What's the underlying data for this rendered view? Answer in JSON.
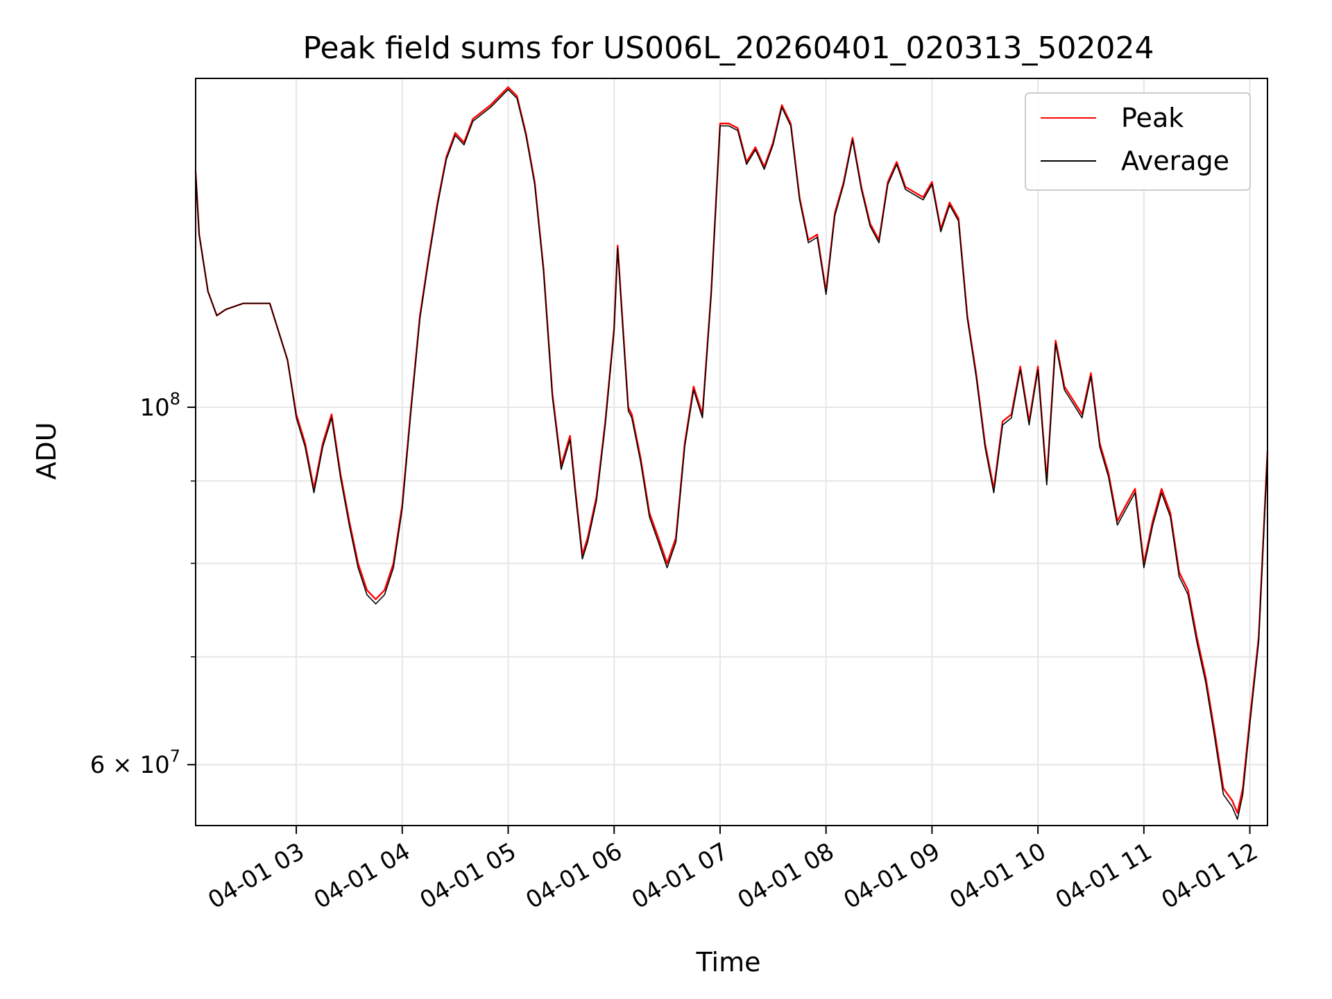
{
  "chart_data": {
    "type": "line",
    "title": "Peak field sums for US006L_20260401_020313_502024",
    "xlabel": "Time",
    "ylabel": "ADU",
    "x_scale": "time",
    "y_scale": "log",
    "xlim": [
      "2026-04-01 02:03",
      "2026-04-01 12:10"
    ],
    "ylim": [
      55000000,
      160000000
    ],
    "xticks": [
      {
        "value": "2026-04-01 03:00",
        "label": "04-01 03"
      },
      {
        "value": "2026-04-01 04:00",
        "label": "04-01 04"
      },
      {
        "value": "2026-04-01 05:00",
        "label": "04-01 05"
      },
      {
        "value": "2026-04-01 06:00",
        "label": "04-01 06"
      },
      {
        "value": "2026-04-01 07:00",
        "label": "04-01 07"
      },
      {
        "value": "2026-04-01 08:00",
        "label": "04-01 08"
      },
      {
        "value": "2026-04-01 09:00",
        "label": "04-01 09"
      },
      {
        "value": "2026-04-01 10:00",
        "label": "04-01 10"
      },
      {
        "value": "2026-04-01 11:00",
        "label": "04-01 11"
      },
      {
        "value": "2026-04-01 12:00",
        "label": "04-01 12"
      }
    ],
    "yticks_major": [
      {
        "value": 60000000,
        "base": "6",
        "times": "×",
        "exp_base": "10",
        "exp": "7"
      },
      {
        "value": 100000000,
        "base": "10",
        "times": "",
        "exp_base": "",
        "exp": "8"
      }
    ],
    "yticks_minor": [
      70000000,
      80000000,
      90000000
    ],
    "grid": true,
    "legend_position": "top-right",
    "series": [
      {
        "name": "Peak",
        "color": "#ff0000",
        "x": [
          "2026-04-01 02:03",
          "2026-04-01 02:05",
          "2026-04-01 02:10",
          "2026-04-01 02:15",
          "2026-04-01 02:20",
          "2026-04-01 02:30",
          "2026-04-01 02:40",
          "2026-04-01 02:45",
          "2026-04-01 02:55",
          "2026-04-01 03:00",
          "2026-04-01 03:05",
          "2026-04-01 03:10",
          "2026-04-01 03:15",
          "2026-04-01 03:20",
          "2026-04-01 03:25",
          "2026-04-01 03:30",
          "2026-04-01 03:35",
          "2026-04-01 03:40",
          "2026-04-01 03:45",
          "2026-04-01 03:50",
          "2026-04-01 03:55",
          "2026-04-01 04:00",
          "2026-04-01 04:05",
          "2026-04-01 04:10",
          "2026-04-01 04:15",
          "2026-04-01 04:20",
          "2026-04-01 04:25",
          "2026-04-01 04:30",
          "2026-04-01 04:35",
          "2026-04-01 04:40",
          "2026-04-01 04:50",
          "2026-04-01 05:00",
          "2026-04-01 05:05",
          "2026-04-01 05:10",
          "2026-04-01 05:15",
          "2026-04-01 05:20",
          "2026-04-01 05:25",
          "2026-04-01 05:30",
          "2026-04-01 05:35",
          "2026-04-01 05:38",
          "2026-04-01 05:42",
          "2026-04-01 05:45",
          "2026-04-01 05:50",
          "2026-04-01 05:55",
          "2026-04-01 06:00",
          "2026-04-01 06:02",
          "2026-04-01 06:05",
          "2026-04-01 06:08",
          "2026-04-01 06:10",
          "2026-04-01 06:15",
          "2026-04-01 06:20",
          "2026-04-01 06:25",
          "2026-04-01 06:30",
          "2026-04-01 06:35",
          "2026-04-01 06:40",
          "2026-04-01 06:45",
          "2026-04-01 06:50",
          "2026-04-01 06:55",
          "2026-04-01 07:00",
          "2026-04-01 07:05",
          "2026-04-01 07:10",
          "2026-04-01 07:15",
          "2026-04-01 07:20",
          "2026-04-01 07:25",
          "2026-04-01 07:30",
          "2026-04-01 07:35",
          "2026-04-01 07:40",
          "2026-04-01 07:45",
          "2026-04-01 07:50",
          "2026-04-01 07:55",
          "2026-04-01 08:00",
          "2026-04-01 08:05",
          "2026-04-01 08:10",
          "2026-04-01 08:15",
          "2026-04-01 08:20",
          "2026-04-01 08:25",
          "2026-04-01 08:30",
          "2026-04-01 08:35",
          "2026-04-01 08:40",
          "2026-04-01 08:45",
          "2026-04-01 08:50",
          "2026-04-01 08:55",
          "2026-04-01 09:00",
          "2026-04-01 09:05",
          "2026-04-01 09:10",
          "2026-04-01 09:15",
          "2026-04-01 09:20",
          "2026-04-01 09:25",
          "2026-04-01 09:30",
          "2026-04-01 09:35",
          "2026-04-01 09:40",
          "2026-04-01 09:45",
          "2026-04-01 09:50",
          "2026-04-01 09:55",
          "2026-04-01 10:00",
          "2026-04-01 10:05",
          "2026-04-01 10:10",
          "2026-04-01 10:15",
          "2026-04-01 10:20",
          "2026-04-01 10:25",
          "2026-04-01 10:30",
          "2026-04-01 10:35",
          "2026-04-01 10:40",
          "2026-04-01 10:45",
          "2026-04-01 10:50",
          "2026-04-01 10:55",
          "2026-04-01 11:00",
          "2026-04-01 11:05",
          "2026-04-01 11:10",
          "2026-04-01 11:15",
          "2026-04-01 11:20",
          "2026-04-01 11:25",
          "2026-04-01 11:30",
          "2026-04-01 11:35",
          "2026-04-01 11:40",
          "2026-04-01 11:45",
          "2026-04-01 11:50",
          "2026-04-01 11:53",
          "2026-04-01 11:56",
          "2026-04-01 12:00",
          "2026-04-01 12:05",
          "2026-04-01 12:10"
        ],
        "y": [
          140000000,
          128000000,
          118000000,
          114000000,
          115000000,
          116000000,
          116000000,
          116000000,
          107000000,
          99000000,
          95000000,
          89000000,
          95000000,
          99000000,
          91000000,
          85000000,
          80000000,
          77000000,
          76000000,
          77000000,
          80000000,
          87000000,
          100000000,
          114000000,
          124000000,
          134000000,
          143000000,
          148000000,
          146000000,
          151000000,
          154000000,
          158000000,
          156000000,
          148000000,
          138000000,
          122000000,
          102000000,
          92000000,
          96000000,
          89000000,
          81000000,
          83000000,
          88000000,
          98000000,
          112000000,
          126000000,
          112000000,
          100000000,
          99000000,
          93000000,
          86000000,
          83000000,
          80000000,
          83000000,
          95000000,
          103000000,
          99000000,
          118000000,
          150000000,
          150000000,
          149000000,
          142000000,
          145000000,
          141000000,
          146000000,
          154000000,
          150000000,
          135000000,
          127000000,
          128000000,
          118000000,
          132000000,
          138000000,
          147000000,
          137000000,
          130000000,
          127000000,
          138000000,
          142000000,
          137000000,
          136000000,
          135000000,
          138000000,
          129000000,
          134000000,
          131000000,
          114000000,
          105000000,
          95000000,
          89000000,
          98000000,
          99000000,
          106000000,
          98000000,
          106000000,
          90000000,
          110000000,
          103000000,
          101000000,
          99000000,
          105000000,
          95000000,
          91000000,
          85000000,
          87000000,
          89000000,
          80000000,
          85000000,
          89000000,
          86000000,
          79000000,
          77000000,
          72000000,
          68000000,
          63000000,
          58000000,
          57000000,
          56000000,
          58000000,
          64000000,
          72000000,
          94000000
        ]
      },
      {
        "name": "Average",
        "color": "#000000",
        "x": [
          "2026-04-01 02:03",
          "2026-04-01 02:05",
          "2026-04-01 02:10",
          "2026-04-01 02:15",
          "2026-04-01 02:20",
          "2026-04-01 02:30",
          "2026-04-01 02:40",
          "2026-04-01 02:45",
          "2026-04-01 02:55",
          "2026-04-01 03:00",
          "2026-04-01 03:05",
          "2026-04-01 03:10",
          "2026-04-01 03:15",
          "2026-04-01 03:20",
          "2026-04-01 03:25",
          "2026-04-01 03:30",
          "2026-04-01 03:35",
          "2026-04-01 03:40",
          "2026-04-01 03:45",
          "2026-04-01 03:50",
          "2026-04-01 03:55",
          "2026-04-01 04:00",
          "2026-04-01 04:05",
          "2026-04-01 04:10",
          "2026-04-01 04:15",
          "2026-04-01 04:20",
          "2026-04-01 04:25",
          "2026-04-01 04:30",
          "2026-04-01 04:35",
          "2026-04-01 04:40",
          "2026-04-01 04:50",
          "2026-04-01 05:00",
          "2026-04-01 05:05",
          "2026-04-01 05:10",
          "2026-04-01 05:15",
          "2026-04-01 05:20",
          "2026-04-01 05:25",
          "2026-04-01 05:30",
          "2026-04-01 05:35",
          "2026-04-01 05:38",
          "2026-04-01 05:42",
          "2026-04-01 05:45",
          "2026-04-01 05:50",
          "2026-04-01 05:55",
          "2026-04-01 06:00",
          "2026-04-01 06:02",
          "2026-04-01 06:05",
          "2026-04-01 06:08",
          "2026-04-01 06:10",
          "2026-04-01 06:15",
          "2026-04-01 06:20",
          "2026-04-01 06:25",
          "2026-04-01 06:30",
          "2026-04-01 06:35",
          "2026-04-01 06:40",
          "2026-04-01 06:45",
          "2026-04-01 06:50",
          "2026-04-01 06:55",
          "2026-04-01 07:00",
          "2026-04-01 07:05",
          "2026-04-01 07:10",
          "2026-04-01 07:15",
          "2026-04-01 07:20",
          "2026-04-01 07:25",
          "2026-04-01 07:30",
          "2026-04-01 07:35",
          "2026-04-01 07:40",
          "2026-04-01 07:45",
          "2026-04-01 07:50",
          "2026-04-01 07:55",
          "2026-04-01 08:00",
          "2026-04-01 08:05",
          "2026-04-01 08:10",
          "2026-04-01 08:15",
          "2026-04-01 08:20",
          "2026-04-01 08:25",
          "2026-04-01 08:30",
          "2026-04-01 08:35",
          "2026-04-01 08:40",
          "2026-04-01 08:45",
          "2026-04-01 08:50",
          "2026-04-01 08:55",
          "2026-04-01 09:00",
          "2026-04-01 09:05",
          "2026-04-01 09:10",
          "2026-04-01 09:15",
          "2026-04-01 09:20",
          "2026-04-01 09:25",
          "2026-04-01 09:30",
          "2026-04-01 09:35",
          "2026-04-01 09:40",
          "2026-04-01 09:45",
          "2026-04-01 09:50",
          "2026-04-01 09:55",
          "2026-04-01 10:00",
          "2026-04-01 10:05",
          "2026-04-01 10:10",
          "2026-04-01 10:15",
          "2026-04-01 10:20",
          "2026-04-01 10:25",
          "2026-04-01 10:30",
          "2026-04-01 10:35",
          "2026-04-01 10:40",
          "2026-04-01 10:45",
          "2026-04-01 10:50",
          "2026-04-01 10:55",
          "2026-04-01 11:00",
          "2026-04-01 11:05",
          "2026-04-01 11:10",
          "2026-04-01 11:15",
          "2026-04-01 11:20",
          "2026-04-01 11:25",
          "2026-04-01 11:30",
          "2026-04-01 11:35",
          "2026-04-01 11:40",
          "2026-04-01 11:45",
          "2026-04-01 11:50",
          "2026-04-01 11:53",
          "2026-04-01 11:56",
          "2026-04-01 12:00",
          "2026-04-01 12:05",
          "2026-04-01 12:10"
        ],
        "y": [
          140000000,
          128000000,
          118000000,
          114000000,
          115000000,
          116000000,
          116000000,
          116000000,
          107000000,
          98500000,
          94500000,
          88500000,
          94500000,
          98500000,
          90500000,
          84500000,
          79500000,
          76500000,
          75500000,
          76500000,
          79500000,
          86500000,
          99500000,
          113500000,
          123500000,
          133500000,
          142500000,
          147500000,
          145500000,
          150500000,
          153500000,
          157500000,
          155500000,
          147500000,
          137500000,
          121500000,
          101500000,
          91500000,
          95500000,
          88500000,
          80500000,
          82500000,
          87500000,
          97500000,
          111500000,
          125500000,
          111500000,
          99500000,
          98500000,
          92500000,
          85500000,
          82500000,
          79500000,
          82500000,
          94500000,
          102500000,
          98500000,
          117500000,
          149500000,
          149500000,
          148500000,
          141500000,
          144500000,
          140500000,
          145500000,
          153500000,
          149500000,
          134500000,
          126500000,
          127500000,
          117500000,
          131500000,
          137500000,
          146500000,
          136500000,
          129500000,
          126500000,
          137500000,
          141500000,
          136500000,
          135500000,
          134500000,
          137500000,
          128500000,
          133500000,
          130500000,
          113500000,
          104500000,
          94500000,
          88500000,
          97500000,
          98500000,
          105500000,
          97500000,
          105500000,
          89500000,
          109500000,
          102500000,
          100500000,
          98500000,
          104500000,
          94500000,
          90500000,
          84500000,
          86500000,
          88500000,
          79500000,
          84500000,
          88500000,
          85500000,
          78500000,
          76500000,
          71500000,
          67500000,
          62500000,
          57500000,
          56500000,
          55500000,
          57500000,
          63500000,
          71500000,
          93500000
        ]
      }
    ]
  }
}
